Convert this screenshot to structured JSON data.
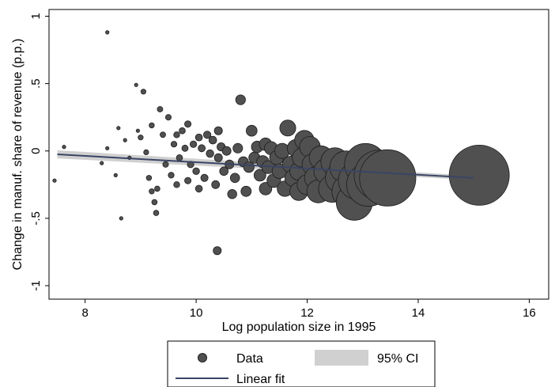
{
  "chart_data": {
    "type": "scatter",
    "xlabel": "Log population size in 1995",
    "ylabel": "Change in manuf. share of revenue (p.p.)",
    "xlim": [
      7.35,
      16.35
    ],
    "ylim": [
      -1.1,
      1.05
    ],
    "x_ticks": [
      8,
      10,
      12,
      14,
      16
    ],
    "x_tick_labels": [
      "8",
      "10",
      "12",
      "14",
      "16"
    ],
    "y_ticks": [
      1,
      0.5,
      0,
      -0.5,
      -1
    ],
    "y_tick_labels": [
      "1",
      ".5",
      "0",
      "-.5",
      "-1"
    ],
    "grid": false,
    "legend_position": "bottom",
    "legend": {
      "data": "Data",
      "ci": "95% CI",
      "fit": "Linear fit"
    },
    "colors": {
      "marker_fill": "#505050",
      "marker_edge": "#1e1e1e",
      "ci_band": "#d0d0d0",
      "fit_line": "#3a4565",
      "frame": "#000000"
    },
    "linear_fit": {
      "x": [
        7.5,
        15.0
      ],
      "y": [
        -0.025,
        -0.2
      ],
      "ci_halfwidth_start": 0.03,
      "ci_halfwidth_end": 0.016
    },
    "series": [
      {
        "marker_size_note": "marker area proportional to population",
        "points": [
          [
            7.45,
            -0.22
          ],
          [
            7.62,
            0.03
          ],
          [
            8.4,
            0.88
          ],
          [
            8.92,
            0.49
          ],
          [
            9.05,
            0.44
          ],
          [
            8.65,
            -0.5
          ],
          [
            10.38,
            -0.74
          ],
          [
            9.28,
            -0.46
          ],
          [
            8.6,
            0.17
          ],
          [
            8.72,
            0.08
          ],
          [
            8.55,
            -0.18
          ],
          [
            8.4,
            0.02
          ],
          [
            8.3,
            -0.09
          ],
          [
            8.8,
            -0.05
          ],
          [
            9.0,
            0.1
          ],
          [
            9.15,
            -0.2
          ],
          [
            9.25,
            -0.38
          ],
          [
            9.35,
            0.31
          ],
          [
            9.2,
            0.19
          ],
          [
            9.4,
            0.12
          ],
          [
            9.1,
            -0.01
          ],
          [
            8.95,
            0.15
          ],
          [
            9.3,
            -0.28
          ],
          [
            9.5,
            0.25
          ],
          [
            9.6,
            0.05
          ],
          [
            9.45,
            -0.1
          ],
          [
            9.55,
            -0.18
          ],
          [
            9.65,
            0.12
          ],
          [
            9.7,
            -0.05
          ],
          [
            9.75,
            0.15
          ],
          [
            9.8,
            0.02
          ],
          [
            9.85,
            0.2
          ],
          [
            9.9,
            -0.1
          ],
          [
            9.95,
            0.05
          ],
          [
            10.0,
            -0.15
          ],
          [
            10.05,
            0.1
          ],
          [
            10.1,
            0.02
          ],
          [
            10.15,
            -0.2
          ],
          [
            10.2,
            0.12
          ],
          [
            10.3,
            0.08
          ],
          [
            10.35,
            -0.25
          ],
          [
            10.4,
            -0.05
          ],
          [
            10.45,
            0.03
          ],
          [
            10.5,
            -0.15
          ],
          [
            10.55,
            0.0
          ],
          [
            10.6,
            -0.1
          ],
          [
            10.7,
            -0.2
          ],
          [
            10.75,
            0.02
          ],
          [
            10.8,
            0.38
          ],
          [
            10.85,
            -0.08
          ],
          [
            10.9,
            -0.3
          ],
          [
            10.95,
            -0.12
          ],
          [
            11.0,
            0.15
          ],
          [
            11.05,
            -0.05
          ],
          [
            11.1,
            0.03
          ],
          [
            11.15,
            -0.18
          ],
          [
            11.2,
            -0.08
          ],
          [
            11.25,
            0.05
          ],
          [
            11.3,
            -0.12
          ],
          [
            11.35,
            0.02
          ],
          [
            11.4,
            -0.22
          ],
          [
            11.45,
            -0.05
          ],
          [
            11.5,
            -0.15
          ],
          [
            11.55,
            0.0
          ],
          [
            11.6,
            -0.28
          ],
          [
            11.65,
            0.17
          ],
          [
            11.7,
            -0.1
          ],
          [
            11.75,
            -0.2
          ],
          [
            11.8,
            0.02
          ],
          [
            11.85,
            -0.15
          ],
          [
            11.9,
            -0.05
          ],
          [
            11.95,
            0.08
          ],
          [
            12.0,
            -0.25
          ],
          [
            12.05,
            0.03
          ],
          [
            12.1,
            -0.1
          ],
          [
            12.15,
            -0.2
          ],
          [
            12.25,
            -0.05
          ],
          [
            12.35,
            -0.15
          ],
          [
            12.45,
            -0.28
          ],
          [
            12.5,
            -0.08
          ],
          [
            12.6,
            -0.2
          ],
          [
            12.7,
            -0.12
          ],
          [
            12.75,
            -0.3
          ],
          [
            12.85,
            -0.38
          ],
          [
            12.9,
            -0.22
          ],
          [
            13.05,
            -0.1
          ],
          [
            13.1,
            -0.25
          ],
          [
            13.3,
            -0.18
          ],
          [
            13.45,
            -0.2
          ],
          [
            15.1,
            -0.18
          ],
          [
            9.65,
            -0.25
          ],
          [
            9.85,
            -0.22
          ],
          [
            10.05,
            -0.28
          ],
          [
            10.25,
            -0.02
          ],
          [
            10.65,
            -0.32
          ],
          [
            11.25,
            -0.28
          ],
          [
            11.85,
            -0.3
          ],
          [
            12.2,
            -0.3
          ],
          [
            9.2,
            -0.3
          ],
          [
            10.4,
            0.15
          ]
        ]
      }
    ]
  }
}
